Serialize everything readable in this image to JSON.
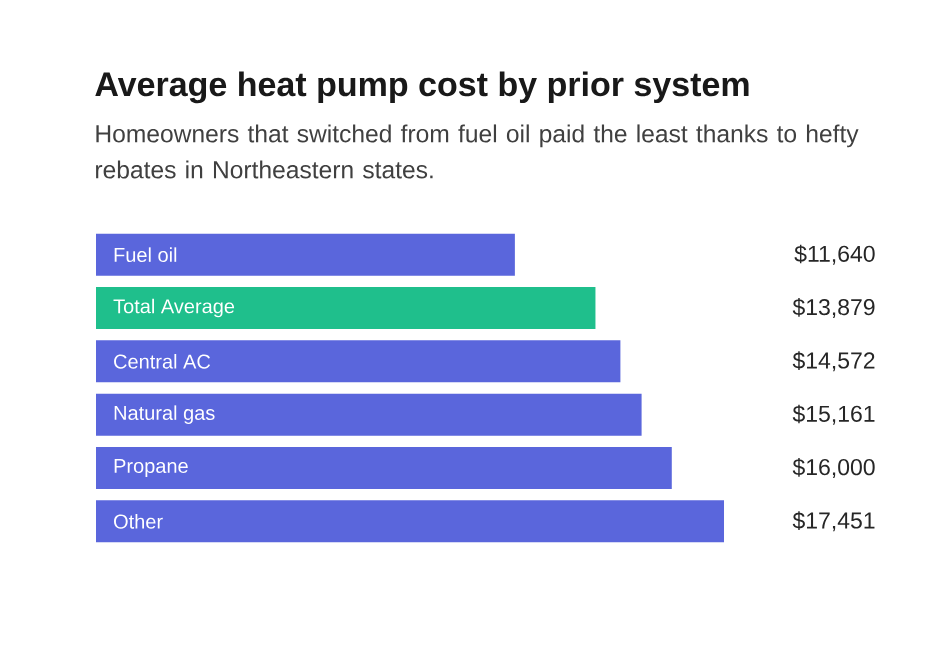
{
  "chart_data": {
    "type": "bar",
    "orientation": "horizontal",
    "title": "Average heat pump cost by prior system",
    "subtitle": "Homeowners that switched from fuel oil paid the least thanks to hefty rebates in Northeastern states.",
    "categories": [
      "Fuel oil",
      "Total Average",
      "Central AC",
      "Natural gas",
      "Propane",
      "Other"
    ],
    "values": [
      11640,
      13879,
      14572,
      15161,
      16000,
      17451
    ],
    "value_labels": [
      "$11,640",
      "$13,879",
      "$14,572",
      "$15,161",
      "$16,000",
      "$17,451"
    ],
    "colors": [
      "#5a66dc",
      "#1fbf8c",
      "#5a66dc",
      "#5a66dc",
      "#5a66dc",
      "#5a66dc"
    ]
  }
}
